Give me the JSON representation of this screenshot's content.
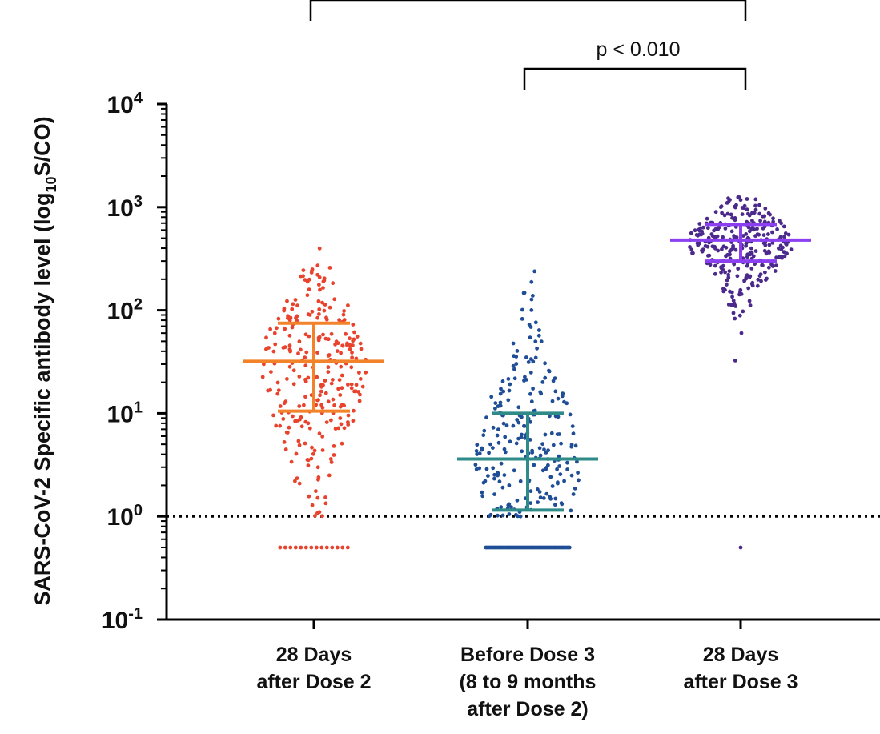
{
  "chart_data": {
    "type": "scatter",
    "ylabel": {
      "prefix": "SARS-CoV-2 Specific antibody level (log",
      "subscript": "10",
      "suffix": "S/CO)"
    },
    "yscale": "log",
    "ylim": [
      0.1,
      10000
    ],
    "yticks": [
      {
        "base": "10",
        "exp": "4",
        "value": 10000
      },
      {
        "base": "10",
        "exp": "3",
        "value": 1000
      },
      {
        "base": "10",
        "exp": "2",
        "value": 100
      },
      {
        "base": "10",
        "exp": "1",
        "value": 10
      },
      {
        "base": "10",
        "exp": "0",
        "value": 1
      },
      {
        "base": "10",
        "exp": "-1",
        "value": 0.1
      }
    ],
    "threshold": 1,
    "categories": [
      {
        "lines": [
          "28 Days",
          "after Dose 2"
        ],
        "color": "#e8432d",
        "summary_color": "#f2832b",
        "median": 32,
        "q1": 10.5,
        "q3": 75,
        "max": 480,
        "min_detectable": 1.0,
        "n_detectable": 270,
        "n_below": 14,
        "below_value": 0.5
      },
      {
        "lines": [
          "Before Dose 3",
          "(8 to 9 months",
          "after Dose 2)"
        ],
        "color": "#1f4e96",
        "summary_color": "#2e8b87",
        "median": 3.6,
        "q1": 1.15,
        "q3": 10,
        "max": 250,
        "min_detectable": 1.0,
        "n_detectable": 230,
        "n_below": 56,
        "below_value": 0.5
      },
      {
        "lines": [
          "28 Days",
          "after Dose 3"
        ],
        "color": "#4b2a8c",
        "summary_color": "#8b3ff0",
        "median": 480,
        "q1": 300,
        "q3": 680,
        "max": 1250,
        "min_detectable": 1.0,
        "n_detectable": 300,
        "n_below": 1,
        "below_value": 0.5
      }
    ],
    "comparisons": [
      {
        "from": 0,
        "to": 2,
        "label": ""
      },
      {
        "from": 1,
        "to": 2,
        "label": "p < 0.010"
      }
    ]
  }
}
